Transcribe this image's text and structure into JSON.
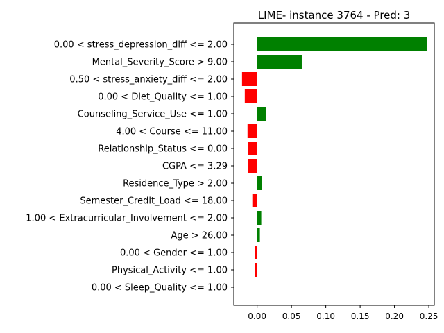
{
  "chart_data": {
    "type": "bar",
    "orientation": "horizontal",
    "title": "LIME- instance 3764 - Pred: 3",
    "xlabel": "",
    "ylabel": "",
    "xlim": [
      -0.034,
      0.258
    ],
    "xticks": [
      0.0,
      0.05,
      0.1,
      0.15,
      0.2,
      0.25
    ],
    "xtick_labels": [
      "0.00",
      "0.05",
      "0.10",
      "0.15",
      "0.20",
      "0.25"
    ],
    "grid": false,
    "positive_color": "#008000",
    "negative_color": "#ff0000",
    "categories": [
      "0.00 < stress_depression_diff <= 2.00",
      "Mental_Severity_Score > 9.00",
      "0.50 < stress_anxiety_diff <= 2.00",
      "0.00 < Diet_Quality <= 1.00",
      "Counseling_Service_Use <= 1.00",
      "4.00 < Course <= 11.00",
      "Relationship_Status <= 0.00",
      "CGPA <= 3.29",
      "Residence_Type > 2.00",
      "Semester_Credit_Load <= 18.00",
      "1.00 < Extracurricular_Involvement <= 2.00",
      "Age > 26.00",
      "0.00 < Gender <= 1.00",
      "Physical_Activity <= 1.00",
      "0.00 < Sleep_Quality <= 1.00"
    ],
    "values": [
      0.247,
      0.065,
      -0.022,
      -0.018,
      0.013,
      -0.014,
      -0.013,
      -0.013,
      0.007,
      -0.007,
      0.006,
      0.004,
      -0.003,
      -0.003,
      0.0
    ]
  }
}
